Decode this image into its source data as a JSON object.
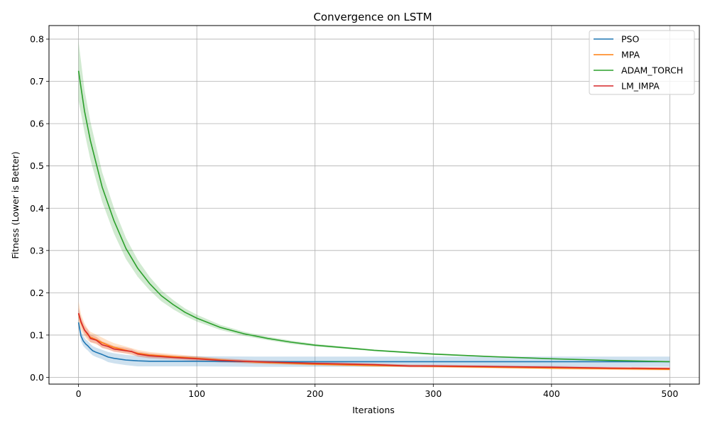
{
  "chart_data": {
    "type": "line",
    "title": "Convergence on LSTM",
    "xlabel": "Iterations",
    "ylabel": "Fitness (Lower is Better)",
    "xlim": [
      -25,
      525
    ],
    "ylim": [
      -0.016,
      0.832
    ],
    "xticks": [
      0,
      100,
      200,
      300,
      400,
      500
    ],
    "yticks": [
      0.0,
      0.1,
      0.2,
      0.3,
      0.4,
      0.5,
      0.6,
      0.7,
      0.8
    ],
    "xtick_labels": [
      "0",
      "100",
      "200",
      "300",
      "400",
      "500"
    ],
    "ytick_labels": [
      "0.0",
      "0.1",
      "0.2",
      "0.3",
      "0.4",
      "0.5",
      "0.6",
      "0.7",
      "0.8"
    ],
    "grid": true,
    "legend_position": "upper right",
    "series": [
      {
        "name": "PSO",
        "color": "#1f77b4",
        "x": [
          0,
          2,
          4,
          6,
          8,
          10,
          12,
          15,
          20,
          25,
          30,
          40,
          50,
          60,
          80,
          100,
          150,
          200,
          300,
          400,
          500
        ],
        "mean": [
          0.13,
          0.098,
          0.086,
          0.079,
          0.074,
          0.068,
          0.063,
          0.059,
          0.054,
          0.048,
          0.045,
          0.041,
          0.039,
          0.038,
          0.038,
          0.038,
          0.037,
          0.037,
          0.037,
          0.037,
          0.037
        ],
        "band_upper": [
          0.14,
          0.11,
          0.098,
          0.09,
          0.085,
          0.079,
          0.074,
          0.07,
          0.065,
          0.06,
          0.057,
          0.053,
          0.051,
          0.05,
          0.05,
          0.05,
          0.049,
          0.049,
          0.049,
          0.049,
          0.049
        ],
        "band_lower": [
          0.12,
          0.086,
          0.074,
          0.068,
          0.063,
          0.057,
          0.052,
          0.048,
          0.043,
          0.036,
          0.033,
          0.029,
          0.026,
          0.026,
          0.026,
          0.026,
          0.025,
          0.025,
          0.025,
          0.025,
          0.025
        ]
      },
      {
        "name": "MPA",
        "color": "#ff7f0e",
        "x": [
          0,
          2,
          5,
          8,
          10,
          15,
          20,
          25,
          30,
          40,
          50,
          60,
          80,
          100,
          120,
          150,
          200,
          250,
          300,
          400,
          500
        ],
        "mean": [
          0.15,
          0.13,
          0.112,
          0.1,
          0.095,
          0.089,
          0.082,
          0.076,
          0.071,
          0.064,
          0.057,
          0.053,
          0.049,
          0.045,
          0.041,
          0.036,
          0.031,
          0.028,
          0.026,
          0.022,
          0.019
        ],
        "band_upper": [
          0.18,
          0.15,
          0.128,
          0.114,
          0.108,
          0.101,
          0.094,
          0.087,
          0.081,
          0.073,
          0.065,
          0.06,
          0.055,
          0.05,
          0.045,
          0.04,
          0.035,
          0.032,
          0.029,
          0.025,
          0.022
        ],
        "band_lower": [
          0.125,
          0.112,
          0.097,
          0.087,
          0.083,
          0.078,
          0.071,
          0.066,
          0.062,
          0.056,
          0.05,
          0.047,
          0.044,
          0.041,
          0.037,
          0.032,
          0.028,
          0.025,
          0.023,
          0.019,
          0.016
        ]
      },
      {
        "name": "ADAM_TORCH",
        "color": "#2ca02c",
        "x": [
          0,
          5,
          10,
          20,
          30,
          40,
          50,
          60,
          70,
          80,
          90,
          100,
          120,
          140,
          160,
          180,
          200,
          250,
          300,
          350,
          400,
          450,
          500
        ],
        "mean": [
          0.725,
          0.63,
          0.56,
          0.45,
          0.37,
          0.305,
          0.258,
          0.222,
          0.193,
          0.172,
          0.154,
          0.14,
          0.118,
          0.103,
          0.092,
          0.083,
          0.076,
          0.064,
          0.055,
          0.049,
          0.044,
          0.04,
          0.037
        ],
        "band_upper": [
          0.795,
          0.68,
          0.605,
          0.485,
          0.4,
          0.33,
          0.278,
          0.238,
          0.206,
          0.183,
          0.163,
          0.148,
          0.124,
          0.108,
          0.096,
          0.087,
          0.079,
          0.066,
          0.057,
          0.05,
          0.045,
          0.041,
          0.038
        ],
        "band_lower": [
          0.655,
          0.58,
          0.515,
          0.415,
          0.34,
          0.28,
          0.238,
          0.206,
          0.18,
          0.161,
          0.145,
          0.132,
          0.112,
          0.098,
          0.088,
          0.079,
          0.073,
          0.062,
          0.053,
          0.048,
          0.043,
          0.039,
          0.036
        ]
      },
      {
        "name": "LM_IMPA",
        "color": "#d62728",
        "x": [
          0,
          2,
          5,
          8,
          10,
          15,
          20,
          25,
          30,
          40,
          45,
          50,
          60,
          80,
          100,
          120,
          150,
          200,
          250,
          280,
          300,
          400,
          450,
          500
        ],
        "mean": [
          0.152,
          0.132,
          0.112,
          0.102,
          0.092,
          0.088,
          0.077,
          0.073,
          0.067,
          0.063,
          0.061,
          0.055,
          0.051,
          0.047,
          0.044,
          0.04,
          0.037,
          0.033,
          0.03,
          0.027,
          0.027,
          0.024,
          0.022,
          0.021
        ],
        "band_upper": [
          0.165,
          0.142,
          0.122,
          0.112,
          0.101,
          0.096,
          0.085,
          0.08,
          0.074,
          0.07,
          0.067,
          0.061,
          0.057,
          0.052,
          0.049,
          0.045,
          0.041,
          0.037,
          0.033,
          0.03,
          0.03,
          0.027,
          0.025,
          0.024
        ],
        "band_lower": [
          0.14,
          0.122,
          0.102,
          0.092,
          0.083,
          0.08,
          0.069,
          0.066,
          0.06,
          0.057,
          0.055,
          0.049,
          0.045,
          0.042,
          0.039,
          0.035,
          0.033,
          0.029,
          0.027,
          0.024,
          0.024,
          0.021,
          0.019,
          0.018
        ]
      }
    ]
  }
}
